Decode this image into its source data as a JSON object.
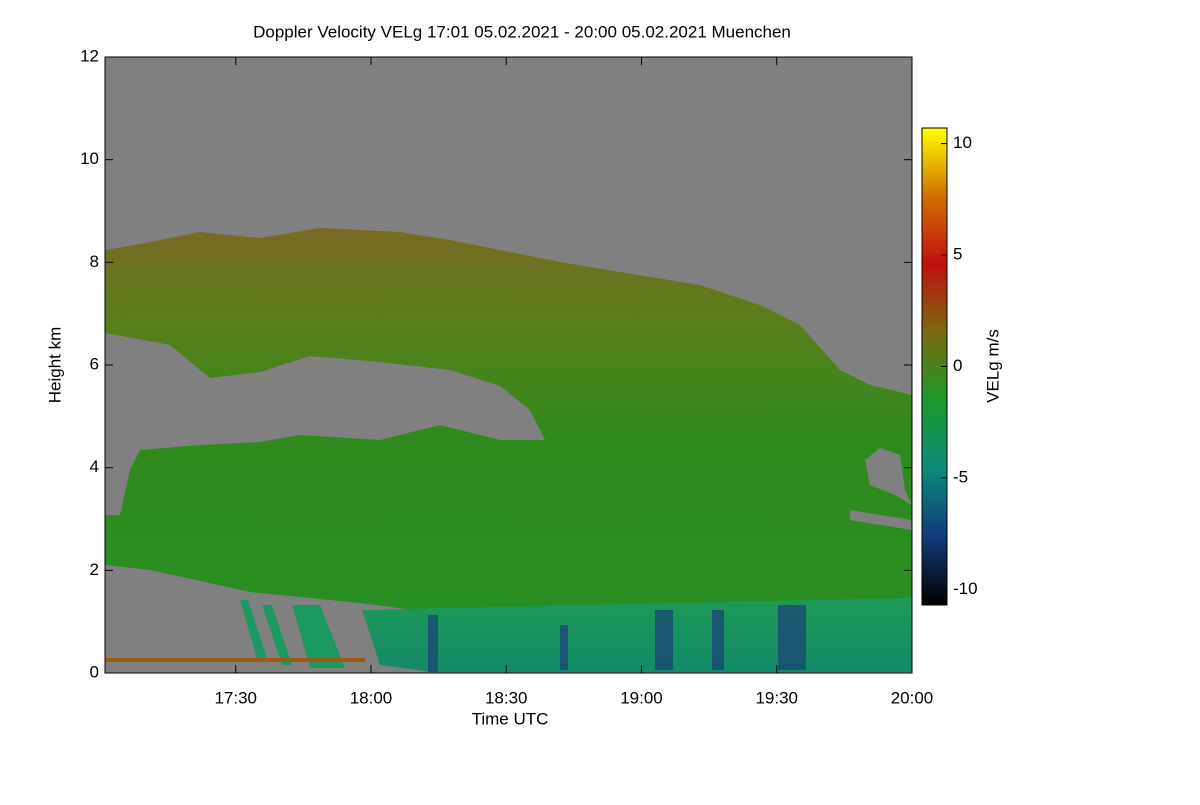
{
  "chart_data": {
    "type": "heatmap",
    "title": "Doppler Velocity VELg   17:01 05.02.2021 - 20:00 05.02.2021 Muenchen",
    "x_label": "Time UTC",
    "y_label": "Height km",
    "colorbar_label": "VELg m/s",
    "xlim": [
      1,
      180
    ],
    "xticks": [
      {
        "value": 30,
        "label": "17:30"
      },
      {
        "value": 60,
        "label": "18:00"
      },
      {
        "value": 90,
        "label": "18:30"
      },
      {
        "value": 120,
        "label": "19:00"
      },
      {
        "value": 150,
        "label": "19:30"
      },
      {
        "value": 180,
        "label": "20:00"
      }
    ],
    "ylim": [
      0,
      12
    ],
    "yticks": [
      0,
      2,
      4,
      6,
      8,
      10,
      12
    ],
    "clim": [
      -10.7,
      10.7
    ],
    "cticks": [
      -10,
      -5,
      0,
      5,
      10
    ],
    "colorscale": [
      "#000000",
      "#123a7a",
      "#0d8a7a",
      "#1a9a2a",
      "#7a6a10",
      "#c01010",
      "#d07000",
      "#ffff00"
    ]
  }
}
